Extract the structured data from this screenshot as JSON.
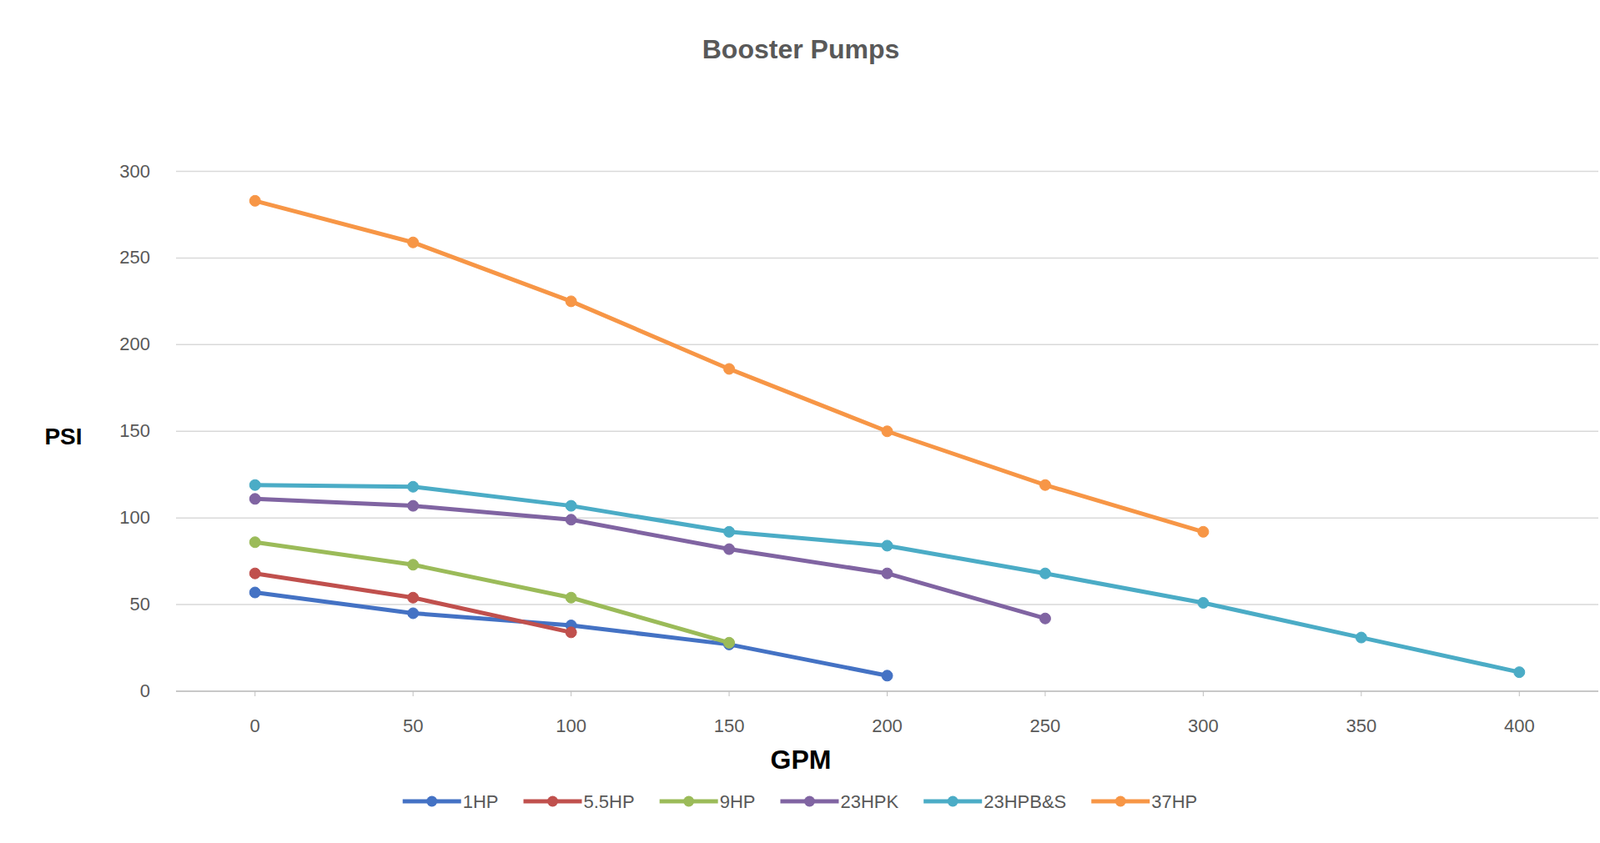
{
  "chart_data": {
    "type": "line",
    "title": "Booster Pumps",
    "x_label": "GPM",
    "y_label": "PSI",
    "x": [
      0,
      50,
      100,
      150,
      200,
      250,
      300,
      350,
      400
    ],
    "series": [
      {
        "name": "1HP",
        "color": "#4472c4",
        "values": [
          57,
          45,
          38,
          27,
          9,
          null,
          null,
          null,
          null
        ]
      },
      {
        "name": "5.5HP",
        "color": "#c0504d",
        "values": [
          68,
          54,
          34,
          null,
          null,
          null,
          null,
          null,
          null
        ]
      },
      {
        "name": "9HP",
        "color": "#9bbb59",
        "values": [
          86,
          73,
          54,
          28,
          null,
          null,
          null,
          null,
          null
        ]
      },
      {
        "name": "23HPK",
        "color": "#8064a2",
        "values": [
          111,
          107,
          99,
          82,
          68,
          42,
          null,
          null,
          null
        ]
      },
      {
        "name": "23HPB&S",
        "color": "#4bacc6",
        "values": [
          119,
          118,
          107,
          92,
          84,
          68,
          51,
          31,
          11
        ]
      },
      {
        "name": "37HP",
        "color": "#f79646",
        "values": [
          283,
          259,
          225,
          186,
          150,
          119,
          92,
          null,
          null
        ]
      }
    ],
    "xlim": [
      -25,
      425
    ],
    "ylim": [
      0,
      300
    ],
    "xticks": [
      0,
      50,
      100,
      150,
      200,
      250,
      300,
      350,
      400
    ],
    "yticks": [
      0,
      50,
      100,
      150,
      200,
      250,
      300
    ],
    "grid": true,
    "legend": "bottom",
    "marker": "circle"
  }
}
